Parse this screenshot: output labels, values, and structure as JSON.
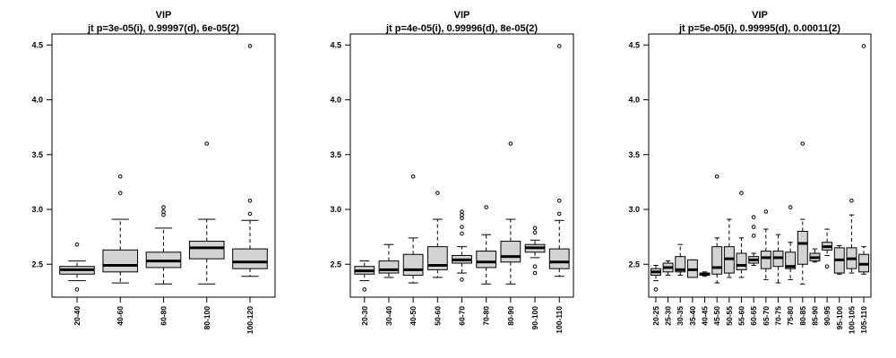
{
  "chart_data": [
    {
      "type": "box",
      "title": "VIP",
      "subtitle": "jt p=3e-05(i), 0.99997(d), 6e-05(2)",
      "ylim": [
        2.2,
        4.6
      ],
      "yticks": [
        2.5,
        3.0,
        3.5,
        4.0,
        4.5
      ],
      "ytick_labels": [
        "2.5",
        "3.0",
        "3.5",
        "4.0",
        "4.5"
      ],
      "box_fill": "#d3d3d3",
      "categories": [
        "20-40",
        "40-60",
        "60-80",
        "80-100",
        "100-120"
      ],
      "boxes": [
        {
          "min": 2.35,
          "q1": 2.41,
          "median": 2.45,
          "q3": 2.48,
          "max": 2.53,
          "outliers": [
            2.68,
            2.27
          ]
        },
        {
          "min": 2.33,
          "q1": 2.43,
          "median": 2.49,
          "q3": 2.63,
          "max": 2.91,
          "outliers": [
            3.3,
            3.15
          ]
        },
        {
          "min": 2.32,
          "q1": 2.47,
          "median": 2.53,
          "q3": 2.61,
          "max": 2.83,
          "outliers": [
            3.02,
            2.98,
            2.95
          ]
        },
        {
          "min": 2.32,
          "q1": 2.55,
          "median": 2.65,
          "q3": 2.71,
          "max": 2.91,
          "outliers": [
            3.6
          ]
        },
        {
          "min": 2.39,
          "q1": 2.46,
          "median": 2.52,
          "q3": 2.64,
          "max": 2.9,
          "outliers": [
            4.49,
            3.08,
            2.96
          ]
        }
      ]
    },
    {
      "type": "box",
      "title": "VIP",
      "subtitle": "jt p=4e-05(i), 0.99996(d), 8e-05(2)",
      "ylim": [
        2.2,
        4.6
      ],
      "yticks": [
        2.5,
        3.0,
        3.5,
        4.0,
        4.5
      ],
      "ytick_labels": [
        "2.5",
        "3.0",
        "3.5",
        "4.0",
        "4.5"
      ],
      "box_fill": "#d3d3d3",
      "categories": [
        "20-30",
        "30-40",
        "40-50",
        "50-60",
        "60-70",
        "70-80",
        "80-90",
        "90-100",
        "100-110"
      ],
      "boxes": [
        {
          "min": 2.35,
          "q1": 2.41,
          "median": 2.44,
          "q3": 2.48,
          "max": 2.53,
          "outliers": [
            2.27
          ]
        },
        {
          "min": 2.38,
          "q1": 2.42,
          "median": 2.45,
          "q3": 2.53,
          "max": 2.68,
          "outliers": []
        },
        {
          "min": 2.33,
          "q1": 2.4,
          "median": 2.45,
          "q3": 2.59,
          "max": 2.74,
          "outliers": [
            3.3
          ]
        },
        {
          "min": 2.38,
          "q1": 2.45,
          "median": 2.49,
          "q3": 2.66,
          "max": 2.91,
          "outliers": [
            3.15
          ]
        },
        {
          "min": 2.42,
          "q1": 2.51,
          "median": 2.54,
          "q3": 2.58,
          "max": 2.66,
          "outliers": [
            2.98,
            2.95,
            2.92,
            2.84,
            2.78,
            2.36
          ]
        },
        {
          "min": 2.32,
          "q1": 2.47,
          "median": 2.52,
          "q3": 2.62,
          "max": 2.77,
          "outliers": [
            3.02
          ]
        },
        {
          "min": 2.32,
          "q1": 2.52,
          "median": 2.57,
          "q3": 2.71,
          "max": 2.91,
          "outliers": [
            3.6
          ]
        },
        {
          "min": 2.56,
          "q1": 2.61,
          "median": 2.65,
          "q3": 2.68,
          "max": 2.72,
          "outliers": [
            2.83,
            2.79,
            2.48,
            2.42
          ]
        },
        {
          "min": 2.39,
          "q1": 2.46,
          "median": 2.52,
          "q3": 2.64,
          "max": 2.9,
          "outliers": [
            4.49,
            3.08,
            2.96
          ]
        }
      ]
    },
    {
      "type": "box",
      "title": "VIP",
      "subtitle": "jt p=5e-05(i), 0.99995(d), 0.00011(2)",
      "ylim": [
        2.2,
        4.6
      ],
      "yticks": [
        2.5,
        3.0,
        3.5,
        4.0,
        4.5
      ],
      "ytick_labels": [
        "2.5",
        "3.0",
        "3.5",
        "4.0",
        "4.5"
      ],
      "box_fill": "#d3d3d3",
      "categories": [
        "20-25",
        "25-30",
        "30-35",
        "35-40",
        "40-45",
        "45-50",
        "50-55",
        "55-60",
        "60-65",
        "65-70",
        "70-75",
        "75-80",
        "80-85",
        "85-90",
        "90-95",
        "95-100",
        "100-105",
        "105-110"
      ],
      "boxes": [
        {
          "min": 2.35,
          "q1": 2.4,
          "median": 2.43,
          "q3": 2.46,
          "max": 2.49,
          "outliers": [
            2.27
          ]
        },
        {
          "min": 2.4,
          "q1": 2.43,
          "median": 2.47,
          "q3": 2.51,
          "max": 2.53,
          "outliers": []
        },
        {
          "min": 2.4,
          "q1": 2.43,
          "median": 2.45,
          "q3": 2.57,
          "max": 2.68,
          "outliers": []
        },
        {
          "min": 2.38,
          "q1": 2.38,
          "median": 2.45,
          "q3": 2.54,
          "max": 2.54,
          "outliers": []
        },
        {
          "min": 2.39,
          "q1": 2.4,
          "median": 2.41,
          "q3": 2.42,
          "max": 2.43,
          "outliers": []
        },
        {
          "min": 2.33,
          "q1": 2.41,
          "median": 2.47,
          "q3": 2.66,
          "max": 2.74,
          "outliers": [
            3.3
          ]
        },
        {
          "min": 2.38,
          "q1": 2.42,
          "median": 2.55,
          "q3": 2.66,
          "max": 2.91,
          "outliers": []
        },
        {
          "min": 2.38,
          "q1": 2.45,
          "median": 2.49,
          "q3": 2.6,
          "max": 2.74,
          "outliers": [
            3.15
          ]
        },
        {
          "min": 2.49,
          "q1": 2.51,
          "median": 2.54,
          "q3": 2.57,
          "max": 2.6,
          "outliers": [
            2.93,
            2.84,
            2.76
          ]
        },
        {
          "min": 2.36,
          "q1": 2.46,
          "median": 2.56,
          "q3": 2.62,
          "max": 2.82,
          "outliers": [
            2.98
          ]
        },
        {
          "min": 2.33,
          "q1": 2.48,
          "median": 2.56,
          "q3": 2.62,
          "max": 2.77,
          "outliers": []
        },
        {
          "min": 2.36,
          "q1": 2.46,
          "median": 2.48,
          "q3": 2.61,
          "max": 2.7,
          "outliers": [
            3.02
          ]
        },
        {
          "min": 2.32,
          "q1": 2.5,
          "median": 2.69,
          "q3": 2.8,
          "max": 2.91,
          "outliers": [
            3.6
          ]
        },
        {
          "min": 2.52,
          "q1": 2.53,
          "median": 2.56,
          "q3": 2.6,
          "max": 2.64,
          "outliers": []
        },
        {
          "min": 2.58,
          "q1": 2.63,
          "median": 2.66,
          "q3": 2.7,
          "max": 2.82,
          "outliers": [
            2.48
          ]
        },
        {
          "min": 2.41,
          "q1": 2.42,
          "median": 2.54,
          "q3": 2.65,
          "max": 2.67,
          "outliers": []
        },
        {
          "min": 2.42,
          "q1": 2.46,
          "median": 2.55,
          "q3": 2.65,
          "max": 2.95,
          "outliers": [
            3.08
          ]
        },
        {
          "min": 2.41,
          "q1": 2.43,
          "median": 2.5,
          "q3": 2.59,
          "max": 2.66,
          "outliers": [
            4.49
          ]
        }
      ]
    }
  ]
}
